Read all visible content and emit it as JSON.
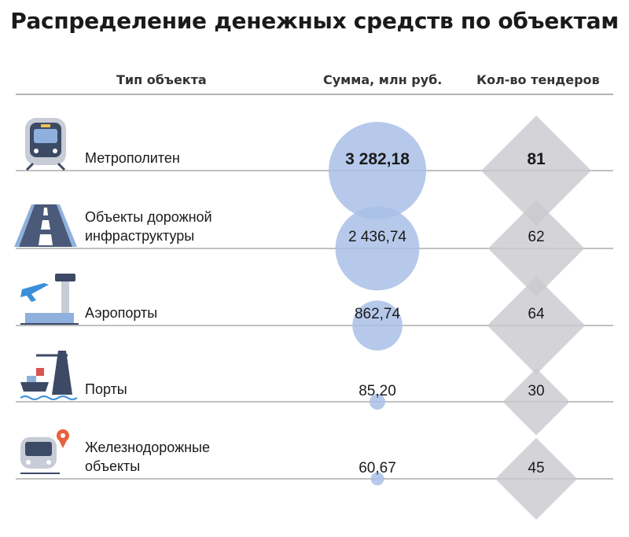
{
  "chart_data": {
    "type": "table",
    "title": "Распределение денежных средств по объектам",
    "columns": [
      "Тип объекта",
      "Сумма, млн руб.",
      "Кол-во тендеров"
    ],
    "rows": [
      {
        "type": "Метрополитен",
        "type_lines": [
          "Метрополитен"
        ],
        "sum": 3282.18,
        "sum_label": "3 282,18",
        "tenders": 81,
        "icon": "metro-train-icon",
        "bold": true
      },
      {
        "type": "Объекты дорожной инфраструктуры",
        "type_lines": [
          "Объекты дорожной",
          "инфраструктуры"
        ],
        "sum": 2436.74,
        "sum_label": "2 436,74",
        "tenders": 62,
        "icon": "road-icon",
        "bold": false
      },
      {
        "type": "Аэропорты",
        "type_lines": [
          "Аэропорты"
        ],
        "sum": 862.74,
        "sum_label": "862,74",
        "tenders": 64,
        "icon": "airport-icon",
        "bold": false
      },
      {
        "type": "Порты",
        "type_lines": [
          "Порты"
        ],
        "sum": 85.2,
        "sum_label": "85,20",
        "tenders": 30,
        "icon": "port-icon",
        "bold": false
      },
      {
        "type": "Железнодорожные объекты",
        "type_lines": [
          "Железнодорожные",
          "объекты"
        ],
        "sum": 60.67,
        "sum_label": "60,67",
        "tenders": 45,
        "icon": "railway-icon",
        "bold": false
      }
    ],
    "colors": {
      "bubble": "#a9bfe6",
      "diamond": "#c9c9ce",
      "line": "#9a9a9a"
    }
  }
}
